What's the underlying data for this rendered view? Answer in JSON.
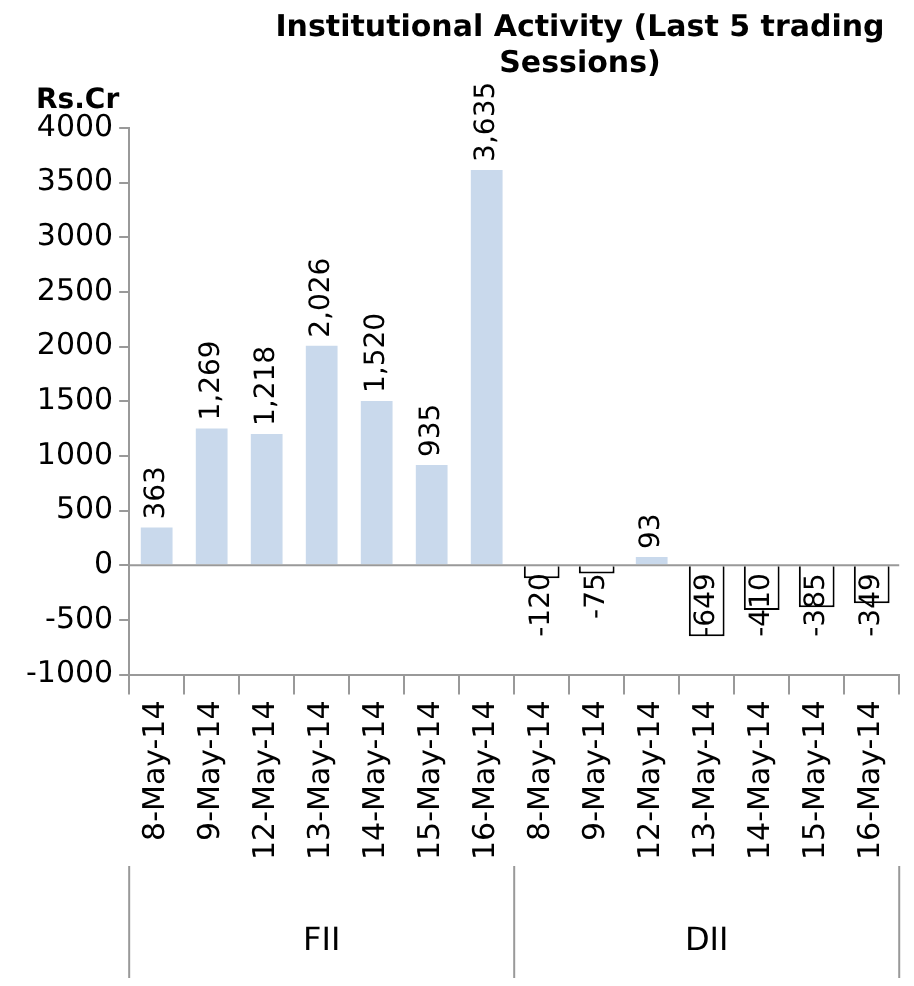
{
  "chart_data": {
    "type": "bar",
    "title": "Institutional Activity (Last 5 trading Sessions)",
    "ylabel": "Rs.Cr",
    "categories": [
      "8-May-14",
      "9-May-14",
      "12-May-14",
      "13-May-14",
      "14-May-14",
      "15-May-14",
      "16-May-14",
      "8-May-14",
      "9-May-14",
      "12-May-14",
      "13-May-14",
      "14-May-14",
      "15-May-14",
      "16-May-14"
    ],
    "values": [
      363,
      1269,
      1218,
      2026,
      1520,
      935,
      3635,
      -120,
      -75,
      93,
      -649,
      -410,
      -385,
      -349
    ],
    "value_labels": [
      "363",
      "1,269",
      "1,218",
      "2,026",
      "1,520",
      "935",
      "3,635",
      "-120",
      "-75",
      "93",
      "-649",
      "-410",
      "-385",
      "-349"
    ],
    "colors": [
      "#c9d9ec",
      "#c9d9ec",
      "#c9d9ec",
      "#c9d9ec",
      "#c9d9ec",
      "#c9d9ec",
      "#c9d9ec",
      "#ffffff",
      "#ffffff",
      "#c9d9ec",
      "#ffffff",
      "#ffffff",
      "#ffffff",
      "#ffffff"
    ],
    "ylim": [
      -1000,
      4000
    ],
    "yticks": [
      -1000,
      -500,
      0,
      500,
      1000,
      1500,
      2000,
      2500,
      3000,
      3500,
      4000
    ],
    "annotations": [
      "FII",
      "DII"
    ],
    "ref_lines": [
      {
        "axis": "y",
        "value": 0,
        "color": "#999999"
      }
    ],
    "grid": false,
    "legend": false
  }
}
